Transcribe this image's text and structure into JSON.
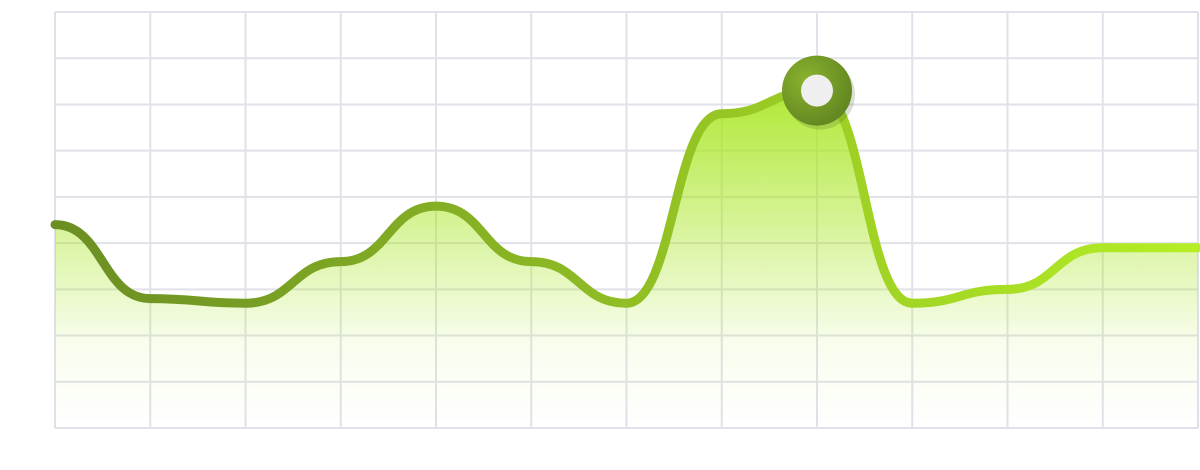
{
  "chart_data": {
    "type": "area",
    "title": "",
    "xlabel": "",
    "ylabel": "",
    "x": [
      0,
      1,
      2,
      3,
      4,
      5,
      6,
      7,
      8,
      9,
      10,
      11,
      12
    ],
    "series": [
      {
        "values": [
          4.4,
          2.8,
          2.7,
          3.6,
          4.8,
          3.6,
          2.7,
          6.8,
          7.3,
          2.7,
          3.0,
          3.9,
          3.9
        ]
      }
    ],
    "highlight": {
      "x": 8,
      "y": 7.3
    },
    "xlim": [
      0,
      12
    ],
    "ylim": [
      0,
      9
    ],
    "grid": true,
    "grid_columns": 12,
    "grid_rows": 9,
    "legend": "none",
    "colors": {
      "line_start": "#6b8e23",
      "line_end": "#b5ee25",
      "fill_top": "#a8e620",
      "grid": "#e1e1ea",
      "marker_ring": "#6d9323",
      "marker_center": "#efefef"
    }
  }
}
